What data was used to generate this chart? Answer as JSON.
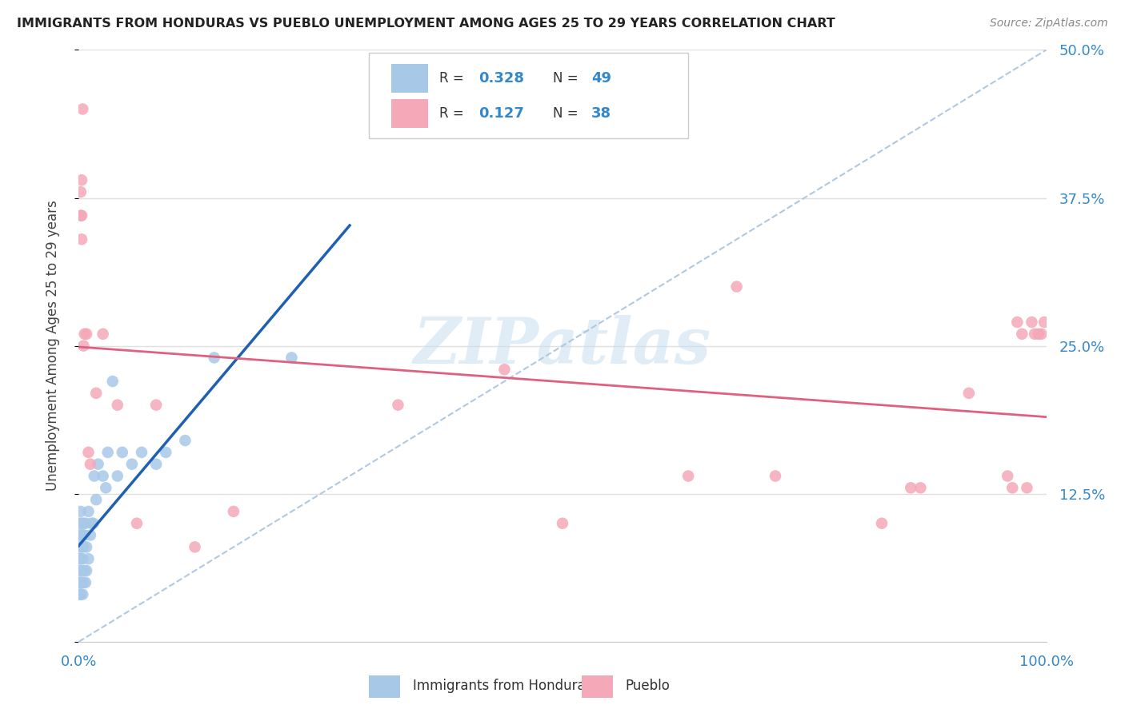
{
  "title": "IMMIGRANTS FROM HONDURAS VS PUEBLO UNEMPLOYMENT AMONG AGES 25 TO 29 YEARS CORRELATION CHART",
  "source": "Source: ZipAtlas.com",
  "ylabel": "Unemployment Among Ages 25 to 29 years",
  "xlim": [
    0,
    1.0
  ],
  "ylim": [
    0,
    0.5
  ],
  "xticks": [
    0.0,
    0.2,
    0.4,
    0.6,
    0.8,
    1.0
  ],
  "xticklabels": [
    "0.0%",
    "",
    "",
    "",
    "",
    "100.0%"
  ],
  "yticks": [
    0.0,
    0.125,
    0.25,
    0.375,
    0.5
  ],
  "yticklabels_right": [
    "",
    "12.5%",
    "25.0%",
    "37.5%",
    "50.0%"
  ],
  "blue_R": 0.328,
  "blue_N": 49,
  "pink_R": 0.127,
  "pink_N": 38,
  "watermark": "ZIPatlas",
  "background_color": "#ffffff",
  "grid_color": "#e0e0e0",
  "blue_color": "#a8c8e8",
  "pink_color": "#f4a8b8",
  "blue_line_color": "#2060b0",
  "pink_line_color": "#e06080",
  "diag_color": "#b0c8e0",
  "legend_label_blue": "Immigrants from Honduras",
  "legend_label_pink": "Pueblo",
  "blue_scatter_x": [
    0.001,
    0.001,
    0.001,
    0.001,
    0.001,
    0.001,
    0.001,
    0.002,
    0.002,
    0.002,
    0.002,
    0.002,
    0.003,
    0.003,
    0.003,
    0.003,
    0.004,
    0.004,
    0.004,
    0.005,
    0.005,
    0.005,
    0.006,
    0.006,
    0.007,
    0.007,
    0.008,
    0.008,
    0.01,
    0.01,
    0.012,
    0.013,
    0.015,
    0.016,
    0.018,
    0.02,
    0.025,
    0.028,
    0.03,
    0.035,
    0.04,
    0.045,
    0.055,
    0.065,
    0.08,
    0.09,
    0.11,
    0.14,
    0.22
  ],
  "blue_scatter_y": [
    0.04,
    0.05,
    0.06,
    0.07,
    0.08,
    0.09,
    0.1,
    0.04,
    0.05,
    0.07,
    0.09,
    0.11,
    0.05,
    0.06,
    0.08,
    0.1,
    0.04,
    0.07,
    0.09,
    0.05,
    0.08,
    0.1,
    0.06,
    0.09,
    0.05,
    0.1,
    0.06,
    0.08,
    0.07,
    0.11,
    0.09,
    0.1,
    0.1,
    0.14,
    0.12,
    0.15,
    0.14,
    0.13,
    0.16,
    0.22,
    0.14,
    0.16,
    0.15,
    0.16,
    0.15,
    0.16,
    0.17,
    0.24,
    0.24
  ],
  "pink_scatter_x": [
    0.002,
    0.002,
    0.003,
    0.003,
    0.003,
    0.004,
    0.005,
    0.006,
    0.008,
    0.01,
    0.012,
    0.018,
    0.025,
    0.04,
    0.06,
    0.08,
    0.12,
    0.16,
    0.33,
    0.44,
    0.5,
    0.63,
    0.68,
    0.72,
    0.83,
    0.86,
    0.87,
    0.92,
    0.96,
    0.965,
    0.97,
    0.975,
    0.98,
    0.985,
    0.988,
    0.992,
    0.995,
    0.998
  ],
  "pink_scatter_y": [
    0.36,
    0.38,
    0.34,
    0.36,
    0.39,
    0.45,
    0.25,
    0.26,
    0.26,
    0.16,
    0.15,
    0.21,
    0.26,
    0.2,
    0.1,
    0.2,
    0.08,
    0.11,
    0.2,
    0.23,
    0.1,
    0.14,
    0.3,
    0.14,
    0.1,
    0.13,
    0.13,
    0.21,
    0.14,
    0.13,
    0.27,
    0.26,
    0.13,
    0.27,
    0.26,
    0.26,
    0.26,
    0.27
  ]
}
